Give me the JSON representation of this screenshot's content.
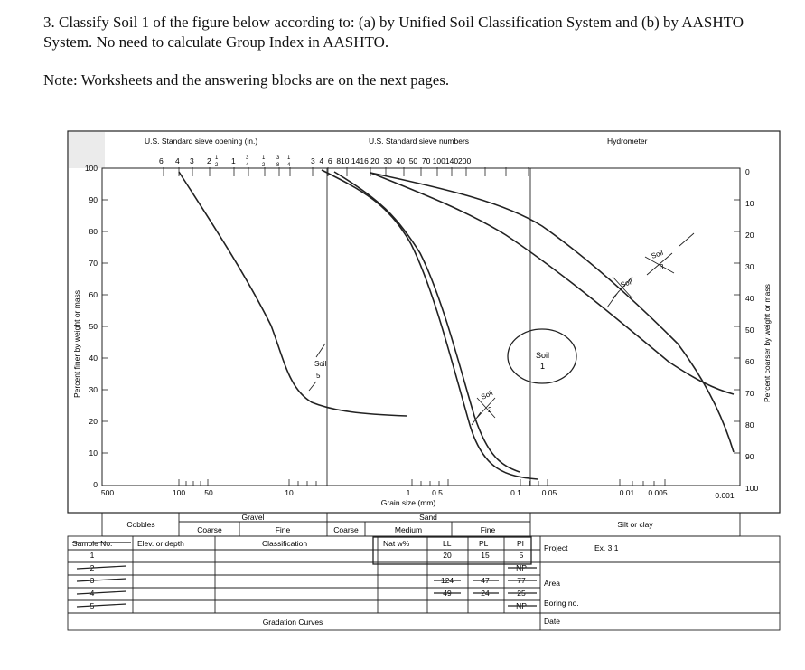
{
  "question": {
    "text": "3. Classify Soil 1 of the figure below according to: (a) by Unified Soil Classification System and (b) by AASHTO System. No need to calculate Group Index in AASHTO.",
    "note": "Note: Worksheets and the answering blocks are on the next pages."
  },
  "figure": {
    "header_left": "U.S. Standard sieve opening (in.)",
    "header_mid": "U.S. Standard sieve numbers",
    "header_right": "Hydrometer",
    "sieve_openings": [
      "6",
      "4",
      "3",
      "2",
      "1",
      "1",
      "1",
      "3"
    ],
    "sieve_numbers": "3  4  6  810 1416 20  30  40  50  70 100140200",
    "left_axis_label": "Percent finer by weight or mass",
    "right_axis_label": "Percent coarser by weight or mass",
    "left_ticks": [
      "100",
      "90",
      "80",
      "70",
      "60",
      "50",
      "40",
      "30",
      "20",
      "10",
      "0"
    ],
    "right_ticks": [
      "0",
      "10",
      "20",
      "30",
      "40",
      "50",
      "60",
      "70",
      "80",
      "90",
      "100"
    ],
    "x_ticks": [
      "500",
      "100",
      "50",
      "10",
      "1",
      "0.5",
      "0.1",
      "0.05",
      "0.01",
      "0.005",
      "0.001"
    ],
    "x_axis_label": "Grain size (mm)",
    "soil_labels": {
      "soil1": "Soil",
      "soil1_num": "1",
      "soil2": "Soil",
      "soil2_num": "2",
      "soil3": "Soil",
      "soil3_num": "3",
      "soil4": "Soil",
      "soil5": "Soil",
      "soil5_num": "5"
    }
  },
  "table": {
    "cobbles": "Cobbles",
    "gravel": "Gravel",
    "gravel_coarse": "Coarse",
    "gravel_fine": "Fine",
    "sand": "Sand",
    "sand_coarse": "Coarse",
    "sand_medium": "Medium",
    "sand_fine": "Fine",
    "silt_clay": "Silt or clay",
    "headers": {
      "sample_no": "Sample No.",
      "elev": "Elev. or depth",
      "classification": "Classification",
      "nat_w": "Nat w%",
      "ll": "LL",
      "pl": "PL",
      "pi": "PI"
    },
    "rows": [
      {
        "no": "1",
        "ll": "20",
        "pl": "15",
        "pi": "5"
      },
      {
        "no": "2",
        "ll": "",
        "pl": "",
        "pi": "NP"
      },
      {
        "no": "3",
        "ll": "124",
        "pl": "47",
        "pi": "77"
      },
      {
        "no": "4",
        "ll": "49",
        "pl": "24",
        "pi": "25"
      },
      {
        "no": "5",
        "ll": "",
        "pl": "",
        "pi": "NP"
      }
    ],
    "project_label": "Project",
    "project_value": "Ex. 3.1",
    "area_label": "Area",
    "boring_label": "Boring no.",
    "date_label": "Date",
    "footer": "Gradation Curves"
  }
}
